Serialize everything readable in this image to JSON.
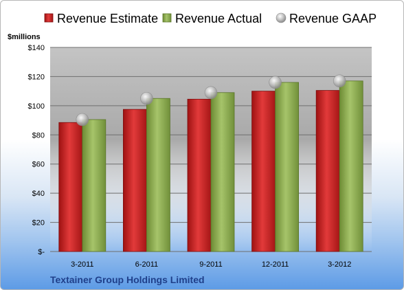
{
  "chart_data": {
    "type": "bar",
    "categories": [
      "3-2011",
      "6-2011",
      "9-2011",
      "12-2011",
      "3-2012"
    ],
    "series": [
      {
        "name": "Revenue Estimate",
        "kind": "bar",
        "color": "#cc1f1f",
        "values": [
          88.5,
          97.5,
          104.5,
          110,
          110.5
        ]
      },
      {
        "name": "Revenue Actual",
        "kind": "bar",
        "color": "#8fb050",
        "values": [
          90.5,
          105,
          109,
          116,
          117
        ]
      },
      {
        "name": "Revenue GAAP",
        "kind": "marker",
        "color": "#b8b8b8",
        "values": [
          90.5,
          105,
          109,
          116,
          117
        ]
      }
    ],
    "ylabel": "$millions",
    "ylim": [
      0,
      140
    ],
    "yticks": [
      {
        "value": 0,
        "label": "$-"
      },
      {
        "value": 20,
        "label": "$20"
      },
      {
        "value": 40,
        "label": "$40"
      },
      {
        "value": 60,
        "label": "$60"
      },
      {
        "value": 80,
        "label": "$80"
      },
      {
        "value": 100,
        "label": "$100"
      },
      {
        "value": 120,
        "label": "$120"
      },
      {
        "value": 140,
        "label": "$140"
      }
    ],
    "grid": true,
    "legend_position": "top"
  },
  "company_name": "Textainer Group Holdings Limited"
}
